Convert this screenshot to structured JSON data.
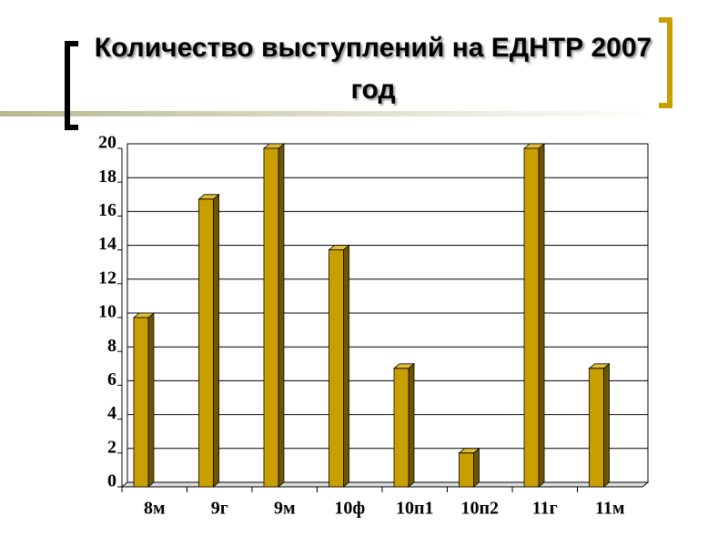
{
  "chart_data": {
    "type": "bar3d",
    "title": "Количество выступлений на ЕДНТР 2007 год",
    "categories": [
      "8м",
      "9г",
      "9м",
      "10ф",
      "10п1",
      "10п2",
      "11г",
      "11м"
    ],
    "values": [
      10,
      17,
      20,
      14,
      7,
      2,
      20,
      7
    ],
    "color": "#c99f00",
    "ylim": [
      0,
      20
    ],
    "yticks": [
      0,
      2,
      4,
      6,
      8,
      10,
      12,
      14,
      16,
      18,
      20
    ],
    "grid": true
  }
}
